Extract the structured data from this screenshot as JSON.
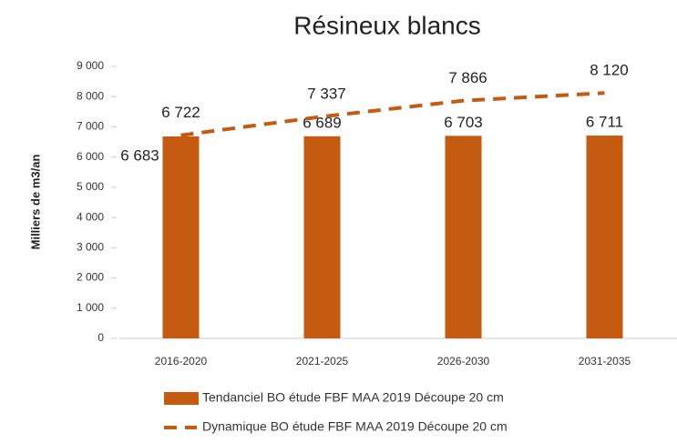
{
  "chart_data": {
    "type": "bar+line",
    "title": "Résineux blancs",
    "y_label": "Milliers de m3/an",
    "categories": [
      "2016-2020",
      "2021-2025",
      "2026-2030",
      "2031-2035"
    ],
    "series": [
      {
        "name": "Tendanciel BO étude FBF MAA 2019 Découpe 20 cm",
        "type": "bar",
        "color": "#c55a11",
        "values": [
          6683,
          6689,
          6703,
          6711
        ],
        "value_labels": [
          "6 683",
          "6 689",
          "6 703",
          "6 711"
        ]
      },
      {
        "name": "Dynamique BO étude FBF MAA 2019 Découpe 20 cm",
        "type": "line",
        "color": "#c55a11",
        "dashed": true,
        "values": [
          6722,
          7337,
          7866,
          8120
        ],
        "value_labels": [
          "6 722",
          "7 337",
          "7 866",
          "8 120"
        ]
      }
    ],
    "ylim": [
      0,
      9000
    ],
    "yticks": [
      0,
      {
        "value": 1000,
        "label": "1 000"
      },
      {
        "value": 2000,
        "label": "2 000"
      },
      {
        "value": 3000,
        "label": "3 000"
      },
      {
        "value": 4000,
        "label": "4 000"
      },
      {
        "value": 5000,
        "label": "5 000"
      },
      {
        "value": 6000,
        "label": "6 000"
      },
      {
        "value": 7000,
        "label": "7 000"
      },
      {
        "value": 8000,
        "label": "8 000"
      },
      {
        "value": 9000,
        "label": "9 000"
      }
    ],
    "grid": false,
    "legend": "bottom"
  }
}
